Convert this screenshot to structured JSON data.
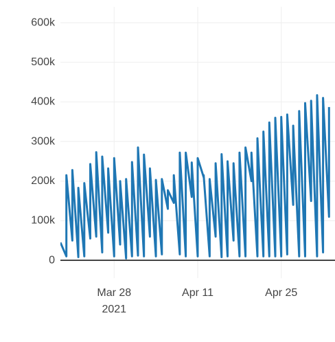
{
  "chart_data": {
    "type": "line",
    "x": [
      "2021-03-19",
      "2021-03-20",
      "2021-03-20",
      "2021-03-21",
      "2021-03-21",
      "2021-03-22",
      "2021-03-22",
      "2021-03-23",
      "2021-03-23",
      "2021-03-24",
      "2021-03-24",
      "2021-03-25",
      "2021-03-25",
      "2021-03-26",
      "2021-03-26",
      "2021-03-27",
      "2021-03-27",
      "2021-03-28",
      "2021-03-28",
      "2021-03-29",
      "2021-03-29",
      "2021-03-30",
      "2021-03-30",
      "2021-03-31",
      "2021-03-31",
      "2021-04-01",
      "2021-04-01",
      "2021-04-02",
      "2021-04-02",
      "2021-04-03",
      "2021-04-03",
      "2021-04-04",
      "2021-04-04",
      "2021-04-05",
      "2021-04-05",
      "2021-04-06",
      "2021-04-06",
      "2021-04-07",
      "2021-04-07",
      "2021-04-08",
      "2021-04-08",
      "2021-04-09",
      "2021-04-09",
      "2021-04-10",
      "2021-04-10",
      "2021-04-11",
      "2021-04-11",
      "2021-04-12",
      "2021-04-12",
      "2021-04-13",
      "2021-04-13",
      "2021-04-14",
      "2021-04-14",
      "2021-04-15",
      "2021-04-15",
      "2021-04-16",
      "2021-04-16",
      "2021-04-17",
      "2021-04-17",
      "2021-04-18",
      "2021-04-18",
      "2021-04-19",
      "2021-04-19",
      "2021-04-20",
      "2021-04-20",
      "2021-04-21",
      "2021-04-21",
      "2021-04-22",
      "2021-04-22",
      "2021-04-23",
      "2021-04-23",
      "2021-04-24",
      "2021-04-24",
      "2021-04-25",
      "2021-04-25",
      "2021-04-26",
      "2021-04-26",
      "2021-04-27",
      "2021-04-27",
      "2021-04-28",
      "2021-04-28",
      "2021-04-29",
      "2021-04-29",
      "2021-04-30",
      "2021-04-30",
      "2021-05-01",
      "2021-05-01",
      "2021-05-02",
      "2021-05-02",
      "2021-05-03",
      "2021-05-03"
    ],
    "series": [
      {
        "color": "#1f77b4",
        "values": [
          45000,
          10000,
          215000,
          50000,
          228000,
          8000,
          183000,
          10000,
          195000,
          55000,
          243000,
          60000,
          273000,
          20000,
          262000,
          70000,
          232000,
          10000,
          258000,
          40000,
          200000,
          5000,
          205000,
          10000,
          248000,
          12000,
          285000,
          10000,
          267000,
          60000,
          232000,
          10000,
          203000,
          15000,
          205000,
          130000,
          177000,
          145000,
          215000,
          15000,
          272000,
          10000,
          272000,
          160000,
          247000,
          10000,
          258000,
          210000,
          215000,
          10000,
          205000,
          60000,
          245000,
          8000,
          268000,
          10000,
          250000,
          50000,
          245000,
          10000,
          272000,
          10000,
          285000,
          200000,
          272000,
          10000,
          308000,
          10000,
          325000,
          10000,
          348000,
          10000,
          360000,
          10000,
          362000,
          15000,
          368000,
          140000,
          340000,
          10000,
          377000,
          10000,
          397000,
          150000,
          403000,
          10000,
          417000,
          20000,
          410000,
          110000,
          387000
        ]
      }
    ],
    "xlim": [
      "2021-03-19",
      "2021-05-04"
    ],
    "xticks": [
      {
        "value": "2021-03-28",
        "label": "Mar 28"
      },
      {
        "value": "2021-04-11",
        "label": "Apr 11"
      },
      {
        "value": "2021-04-25",
        "label": "Apr 25"
      }
    ],
    "x_year_label": "2021",
    "ylim": [
      -45000,
      640000
    ],
    "yticks": [
      0,
      {
        "value": 100000,
        "label": "100k"
      },
      {
        "value": 200000,
        "label": "200k"
      },
      {
        "value": 300000,
        "label": "300k"
      },
      {
        "value": 400000,
        "label": "400k"
      },
      {
        "value": 500000,
        "label": "500k"
      },
      {
        "value": 600000,
        "label": "600k"
      }
    ],
    "grid": true
  }
}
